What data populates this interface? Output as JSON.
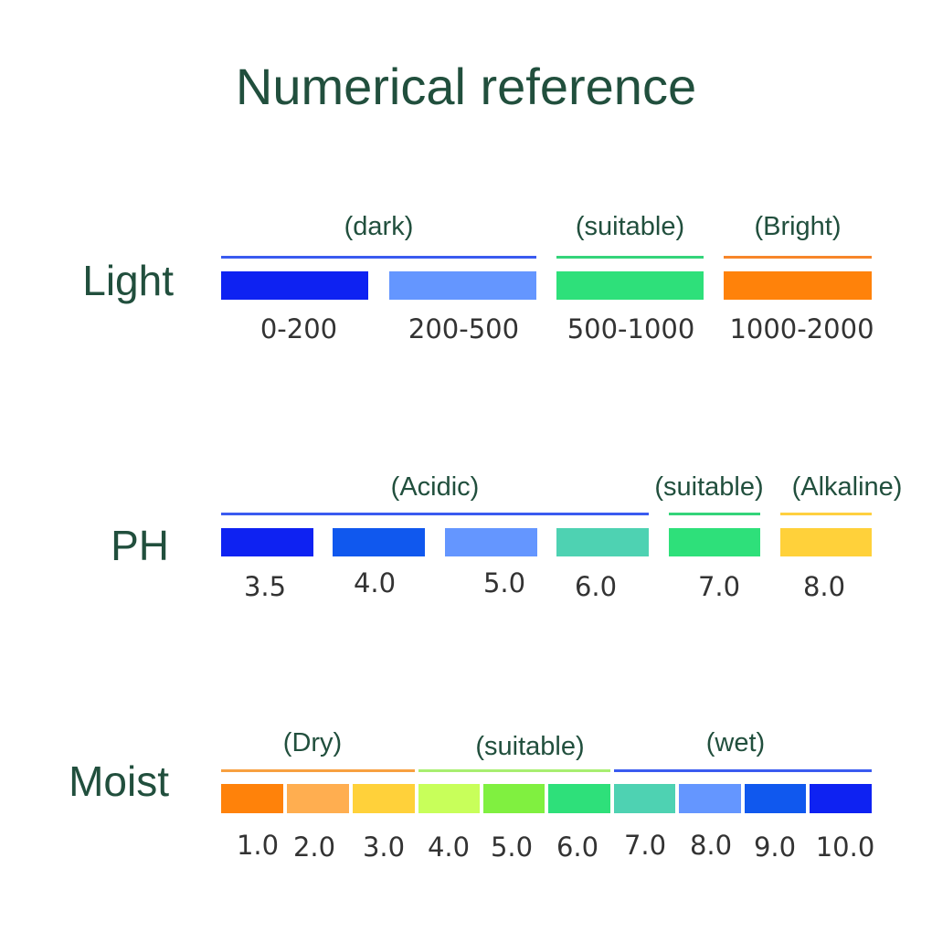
{
  "title": "Numerical reference",
  "light": {
    "label": "Light",
    "groups": [
      {
        "label": "(dark)",
        "color": "#3a5bf0"
      },
      {
        "label": "(suitable)",
        "color": "#34d47a"
      },
      {
        "label": "(Bright)",
        "color": "#f7862a"
      }
    ],
    "segments": [
      {
        "value": "0-200",
        "color": "#0e22f2"
      },
      {
        "value": "200-500",
        "color": "#6496ff"
      },
      {
        "value": "500-1000",
        "color": "#2ee07a"
      },
      {
        "value": "1000-2000",
        "color": "#ff820a"
      }
    ]
  },
  "ph": {
    "label": "PH",
    "groups": [
      {
        "label": "(Acidic)",
        "color": "#3a5bf0"
      },
      {
        "label": "(suitable)",
        "color": "#34d47a"
      },
      {
        "label": "(Alkaline)",
        "color": "#ffd040"
      }
    ],
    "segments": [
      {
        "value": "3.5",
        "color": "#0e22f2"
      },
      {
        "value": "4.0",
        "color": "#1058ee"
      },
      {
        "value": "5.0",
        "color": "#6496ff"
      },
      {
        "value": "6.0",
        "color": "#4ed2b2"
      },
      {
        "value": "7.0",
        "color": "#2ee07a"
      },
      {
        "value": "8.0",
        "color": "#ffd13a"
      }
    ]
  },
  "moist": {
    "label": "Moist",
    "groups": [
      {
        "label": "(Dry)",
        "color": "#f7a040"
      },
      {
        "label": "(suitable)",
        "color": "#a8ee70"
      },
      {
        "label": "(wet)",
        "color": "#3a5bf0"
      }
    ],
    "segments": [
      {
        "value": "1.0",
        "color": "#ff820a"
      },
      {
        "value": "2.0",
        "color": "#ffae50"
      },
      {
        "value": "3.0",
        "color": "#ffd13a"
      },
      {
        "value": "4.0",
        "color": "#c8ff5a"
      },
      {
        "value": "5.0",
        "color": "#80f040"
      },
      {
        "value": "6.0",
        "color": "#2ee07a"
      },
      {
        "value": "7.0",
        "color": "#4ed2b2"
      },
      {
        "value": "8.0",
        "color": "#6496ff"
      },
      {
        "value": "9.0",
        "color": "#1058ee"
      },
      {
        "value": "10.0",
        "color": "#0e22f2"
      }
    ]
  }
}
